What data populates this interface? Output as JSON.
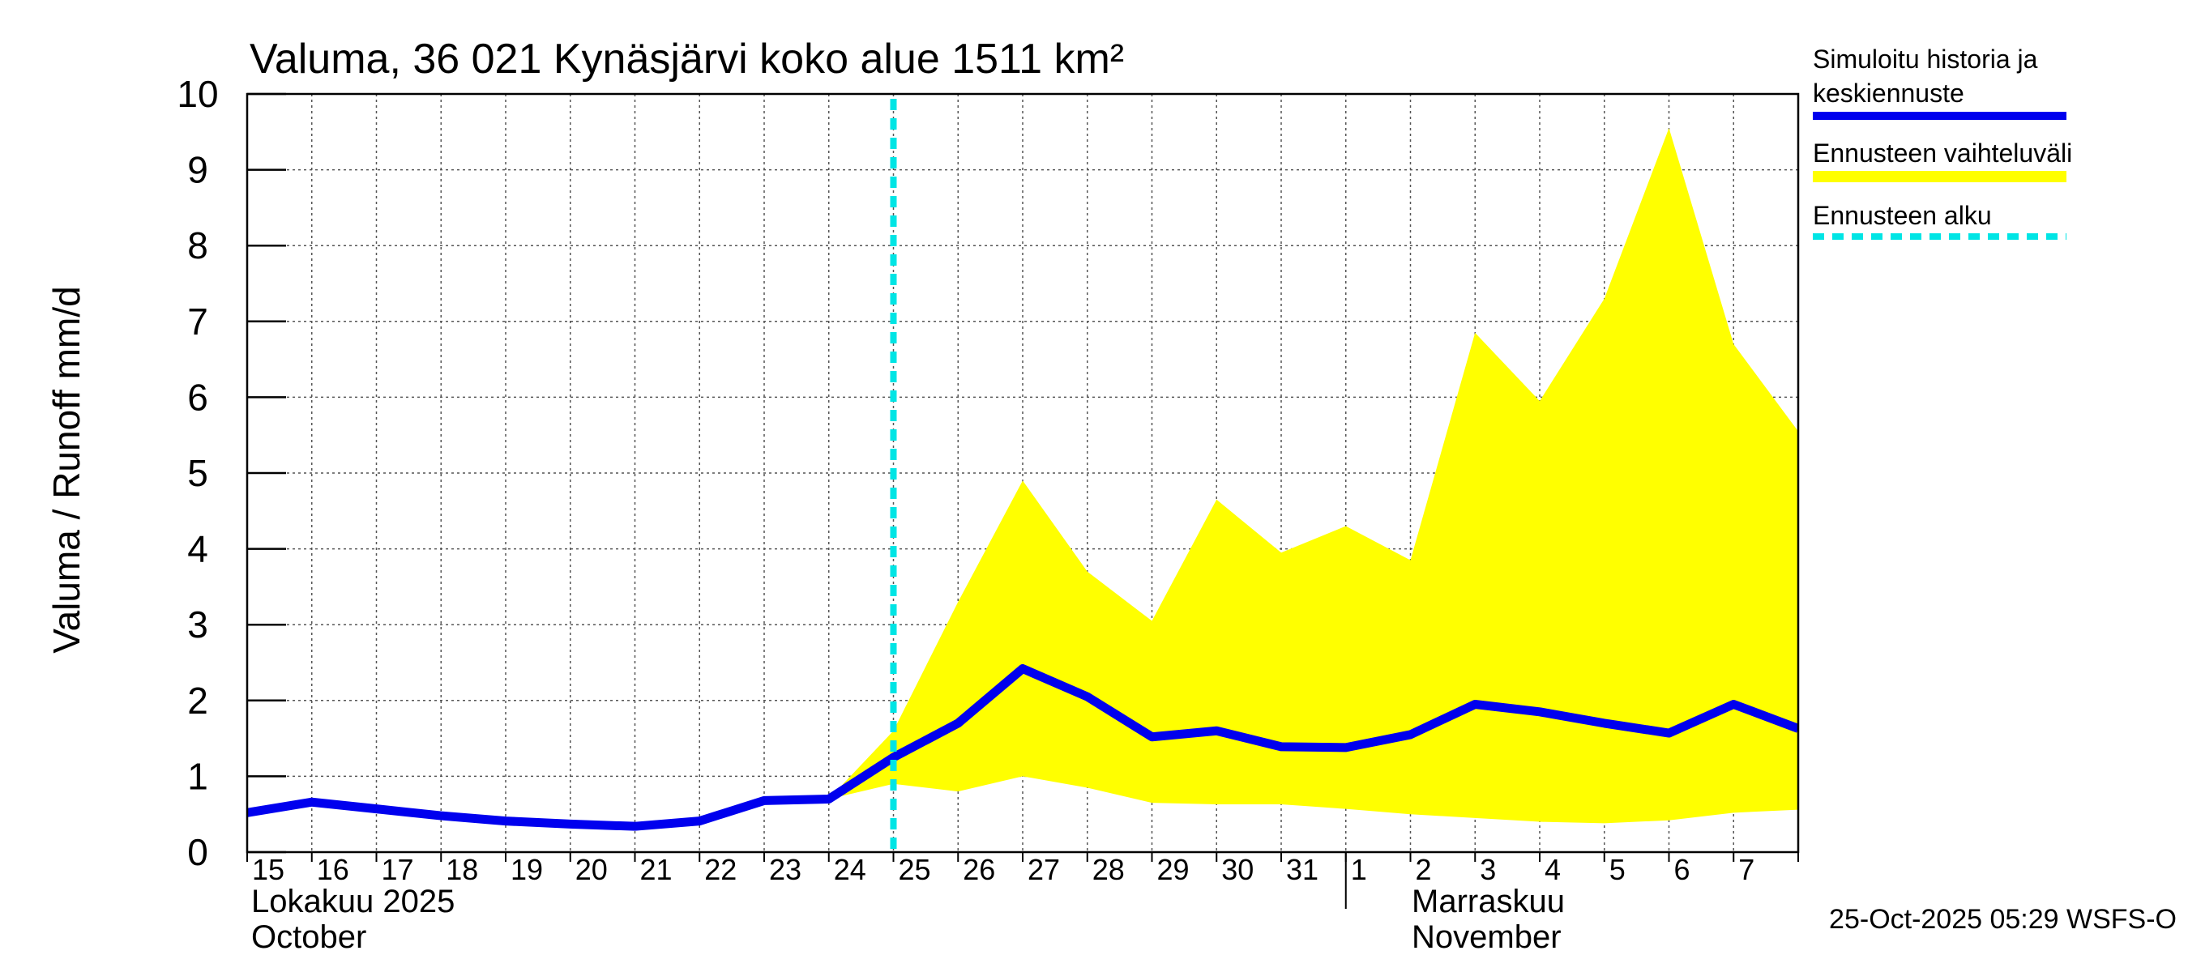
{
  "colors": {
    "history": "#0000ee",
    "range": "#ffff00",
    "forecast_start": "#00e5e5",
    "grid": "#555555",
    "axis": "#000000"
  },
  "chart_data": {
    "type": "line",
    "title": "Valuma, 36 021 Kynäsjärvi koko alue 1511 km²",
    "ylabel": "Valuma / Runoff    mm/d",
    "ylim": [
      0,
      10
    ],
    "yticks": [
      "0",
      "1",
      "2",
      "3",
      "4",
      "5",
      "6",
      "7",
      "8",
      "9",
      "10"
    ],
    "xlim": [
      0,
      24
    ],
    "day_labels": [
      "15",
      "16",
      "17",
      "18",
      "19",
      "20",
      "21",
      "22",
      "23",
      "24",
      "25",
      "26",
      "27",
      "28",
      "29",
      "30",
      "31",
      "1",
      "2",
      "3",
      "4",
      "5",
      "6",
      "7"
    ],
    "month_labels": {
      "october_fi": "Lokakuu   2025",
      "october_en": "October",
      "november_fi": "Marraskuu",
      "november_en": "November"
    },
    "month_boundary_x": 17,
    "forecast_start_x": 10,
    "series": [
      {
        "name": "Simuloitu historia ja keskiennuste",
        "x": [
          0,
          1,
          2,
          3,
          4,
          5,
          6,
          7,
          8,
          9,
          10,
          11,
          12,
          13,
          14,
          15,
          16,
          17,
          18,
          19,
          20,
          21,
          22,
          23,
          24
        ],
        "values": [
          0.52,
          0.66,
          0.57,
          0.48,
          0.41,
          0.37,
          0.34,
          0.41,
          0.68,
          0.7,
          1.25,
          1.7,
          2.42,
          2.05,
          1.52,
          1.6,
          1.39,
          1.38,
          1.55,
          1.95,
          1.85,
          1.7,
          1.57,
          1.95,
          1.63
        ]
      },
      {
        "name": "Ennusteen vaihteluväli",
        "x": [
          9,
          10,
          11,
          12,
          13,
          14,
          15,
          16,
          17,
          18,
          19,
          20,
          21,
          22,
          23,
          24
        ],
        "upper": [
          0.7,
          1.6,
          3.3,
          4.9,
          3.7,
          3.05,
          4.65,
          3.95,
          4.3,
          3.85,
          6.85,
          5.95,
          7.3,
          9.55,
          6.7,
          5.55
        ],
        "lower": [
          0.7,
          0.9,
          0.8,
          1.0,
          0.85,
          0.65,
          0.63,
          0.63,
          0.57,
          0.5,
          0.45,
          0.4,
          0.38,
          0.42,
          0.52,
          0.56
        ]
      }
    ],
    "legend": [
      {
        "label": "Simuloitu historia ja keskiennuste",
        "style": "history"
      },
      {
        "label": "Ennusteen vaihteluväli",
        "style": "range"
      },
      {
        "label": "Ennusteen alku",
        "style": "forecast_start"
      }
    ],
    "footer": "25-Oct-2025 05:29 WSFS-O"
  }
}
